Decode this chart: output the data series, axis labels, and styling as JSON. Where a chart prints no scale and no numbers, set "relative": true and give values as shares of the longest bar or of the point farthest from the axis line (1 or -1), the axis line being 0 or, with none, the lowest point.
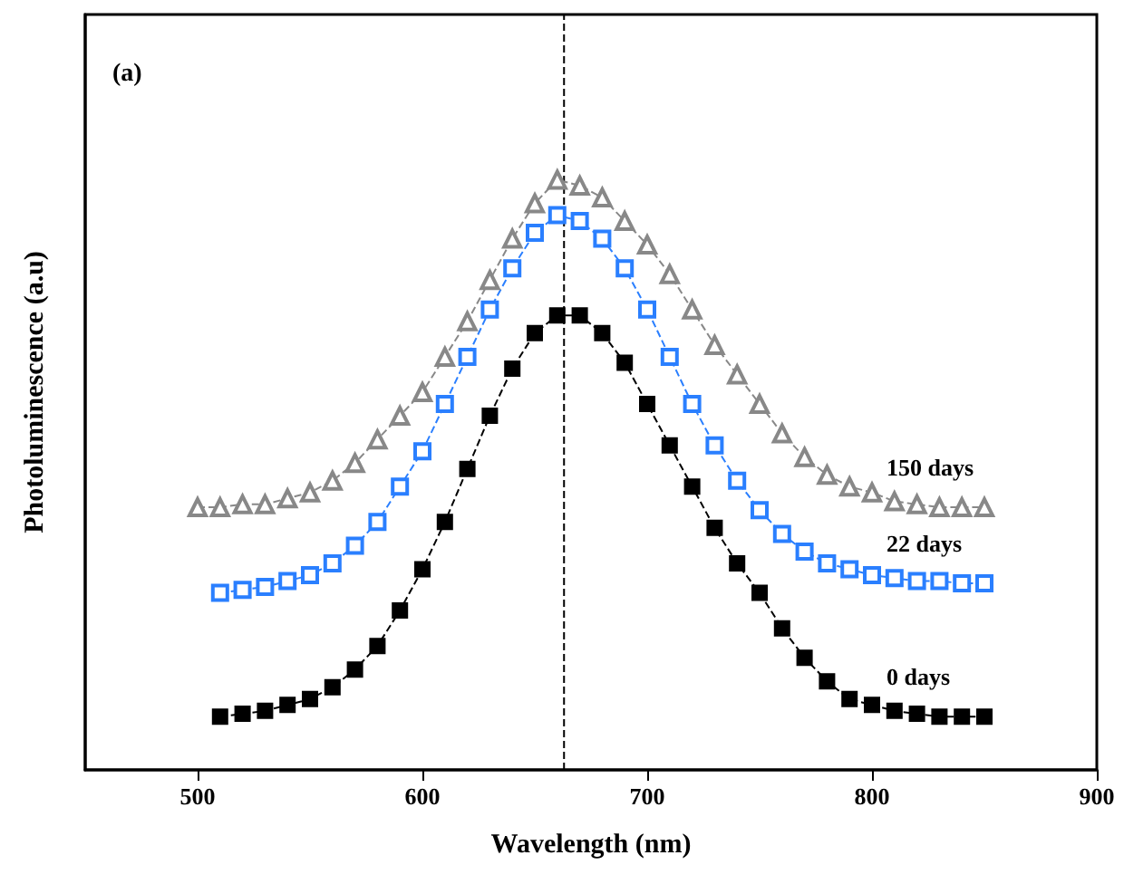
{
  "chart_data": {
    "type": "line",
    "relative": true,
    "xlabel": "Wavelength (nm)",
    "ylabel": "Photoluminescence (a.u)",
    "annotations": [
      "(a)"
    ],
    "xlim": [
      450,
      900
    ],
    "xticks": [
      500,
      600,
      700,
      800,
      900
    ],
    "grid": false,
    "legend": false,
    "tick_labels": "x",
    "line_style": "dashed",
    "ref_lines": [
      {
        "axis": "x",
        "value": 663,
        "color": "#000000",
        "line_style": "dashed"
      }
    ],
    "series": [
      {
        "name": "0 days",
        "color": "#000000",
        "marker": "square",
        "x": [
          510,
          520,
          530,
          540,
          550,
          560,
          570,
          580,
          590,
          600,
          610,
          620,
          630,
          640,
          650,
          660,
          670,
          680,
          690,
          700,
          710,
          720,
          730,
          740,
          750,
          760,
          770,
          780,
          790,
          800,
          810,
          820,
          830,
          840,
          850
        ],
        "values": [
          0.09,
          0.095,
          0.1,
          0.11,
          0.12,
          0.14,
          0.17,
          0.21,
          0.27,
          0.34,
          0.42,
          0.51,
          0.6,
          0.68,
          0.74,
          0.77,
          0.77,
          0.74,
          0.69,
          0.62,
          0.55,
          0.48,
          0.41,
          0.35,
          0.3,
          0.24,
          0.19,
          0.15,
          0.12,
          0.11,
          0.1,
          0.095,
          0.09,
          0.09,
          0.09
        ]
      },
      {
        "name": "22 days",
        "color": "#2a7fff",
        "marker": "square",
        "x": [
          510,
          520,
          530,
          540,
          550,
          560,
          570,
          580,
          590,
          600,
          610,
          620,
          630,
          640,
          650,
          660,
          670,
          680,
          690,
          700,
          710,
          720,
          730,
          740,
          750,
          760,
          770,
          780,
          790,
          800,
          810,
          820,
          830,
          840,
          850
        ],
        "values": [
          0.3,
          0.305,
          0.31,
          0.32,
          0.33,
          0.35,
          0.38,
          0.42,
          0.48,
          0.54,
          0.62,
          0.7,
          0.78,
          0.85,
          0.91,
          0.94,
          0.93,
          0.9,
          0.85,
          0.78,
          0.7,
          0.62,
          0.55,
          0.49,
          0.44,
          0.4,
          0.37,
          0.35,
          0.34,
          0.33,
          0.325,
          0.32,
          0.32,
          0.316,
          0.316
        ]
      },
      {
        "name": "150 days",
        "color": "#888888",
        "marker": "triangle",
        "x": [
          500,
          510,
          520,
          530,
          540,
          550,
          560,
          570,
          580,
          590,
          600,
          610,
          620,
          630,
          640,
          650,
          660,
          670,
          680,
          690,
          700,
          710,
          720,
          730,
          740,
          750,
          760,
          770,
          780,
          790,
          800,
          810,
          820,
          830,
          840,
          850
        ],
        "values": [
          0.445,
          0.445,
          0.45,
          0.45,
          0.46,
          0.47,
          0.49,
          0.52,
          0.56,
          0.6,
          0.64,
          0.7,
          0.76,
          0.83,
          0.9,
          0.96,
          1.0,
          0.99,
          0.97,
          0.93,
          0.89,
          0.84,
          0.78,
          0.72,
          0.67,
          0.62,
          0.57,
          0.53,
          0.5,
          0.48,
          0.47,
          0.455,
          0.45,
          0.445,
          0.445,
          0.445
        ]
      }
    ]
  }
}
